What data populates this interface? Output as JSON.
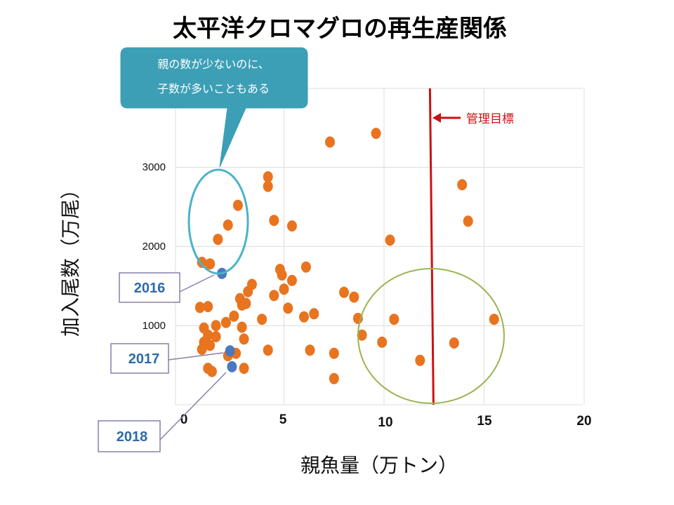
{
  "chart_data": {
    "type": "scatter",
    "title": "太平洋クロマグロの再生産関係",
    "xlabel": "親魚量（万トン）",
    "ylabel": "加入尾数（万尾）",
    "xlim": [
      0,
      20
    ],
    "ylim": [
      0,
      3600
    ],
    "x_ticks": [
      "0",
      "5",
      "10",
      "15",
      "20"
    ],
    "y_ticks": [
      "1000",
      "2000",
      "3000"
    ],
    "grid": true,
    "series": [
      {
        "color": "#e8741f",
        "points": [
          [
            7.3,
            3320
          ],
          [
            9.6,
            3430
          ],
          [
            4.2,
            2880
          ],
          [
            4.2,
            2760
          ],
          [
            2.7,
            2520
          ],
          [
            2.2,
            2270
          ],
          [
            1.7,
            2090
          ],
          [
            4.5,
            2330
          ],
          [
            5.4,
            2260
          ],
          [
            10.3,
            2080
          ],
          [
            13.9,
            2780
          ],
          [
            14.2,
            2320
          ],
          [
            0.9,
            1800
          ],
          [
            1.3,
            1780
          ],
          [
            4.8,
            1710
          ],
          [
            4.9,
            1640
          ],
          [
            6.1,
            1740
          ],
          [
            5.4,
            1570
          ],
          [
            3.4,
            1520
          ],
          [
            3.2,
            1430
          ],
          [
            5.0,
            1460
          ],
          [
            4.5,
            1380
          ],
          [
            2.8,
            1340
          ],
          [
            3.1,
            1280
          ],
          [
            2.9,
            1260
          ],
          [
            0.8,
            1230
          ],
          [
            1.2,
            1240
          ],
          [
            5.2,
            1220
          ],
          [
            8.0,
            1420
          ],
          [
            8.5,
            1360
          ],
          [
            6.5,
            1150
          ],
          [
            6.0,
            1110
          ],
          [
            3.9,
            1080
          ],
          [
            2.5,
            1120
          ],
          [
            2.1,
            1040
          ],
          [
            1.6,
            1000
          ],
          [
            1.0,
            970
          ],
          [
            2.9,
            980
          ],
          [
            1.2,
            880
          ],
          [
            1.6,
            860
          ],
          [
            3.0,
            830
          ],
          [
            1.0,
            790
          ],
          [
            0.9,
            700
          ],
          [
            1.3,
            750
          ],
          [
            8.7,
            1090
          ],
          [
            10.5,
            1080
          ],
          [
            15.5,
            1080
          ],
          [
            8.9,
            880
          ],
          [
            9.9,
            790
          ],
          [
            13.5,
            780
          ],
          [
            4.2,
            690
          ],
          [
            6.3,
            690
          ],
          [
            7.5,
            650
          ],
          [
            2.6,
            650
          ],
          [
            2.2,
            620
          ],
          [
            11.8,
            560
          ],
          [
            1.2,
            460
          ],
          [
            1.4,
            420
          ],
          [
            3.0,
            460
          ],
          [
            7.5,
            330
          ]
        ]
      },
      {
        "color": "#4a78c2",
        "points": [
          [
            1.9,
            1660
          ],
          [
            2.3,
            680
          ],
          [
            2.4,
            480
          ]
        ]
      }
    ],
    "annotations": {
      "bubble_line1": "親の数が少ないのに、",
      "bubble_line2": "子数が多いこともある",
      "target_label": "管理目標",
      "target_x": 12.4,
      "year_2016": "2016",
      "year_2017": "2017",
      "year_2018": "2018"
    }
  }
}
